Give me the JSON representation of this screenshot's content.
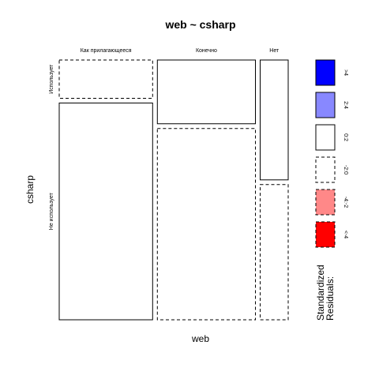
{
  "chart_data": {
    "type": "mosaic",
    "title": "web ~ csharp",
    "xlabel": "web",
    "ylabel": "csharp",
    "x_categories": [
      "Как прилагающееся",
      "Конечно",
      "Нет"
    ],
    "x_proportions": [
      0.4,
      0.42,
      0.12
    ],
    "y_categories": [
      "Использует",
      "Не использует"
    ],
    "cells": [
      {
        "web": "Как прилагающееся",
        "csharp": "Использует",
        "share": 0.15,
        "residual_bin": "-2:0"
      },
      {
        "web": "Как прилагающееся",
        "csharp": "Не использует",
        "share": 0.85,
        "residual_bin": "0:2"
      },
      {
        "web": "Конечно",
        "csharp": "Использует",
        "share": 0.25,
        "residual_bin": "0:2"
      },
      {
        "web": "Конечно",
        "csharp": "Не использует",
        "share": 0.75,
        "residual_bin": "-2:0"
      },
      {
        "web": "Нет",
        "csharp": "Использует",
        "share": 0.47,
        "residual_bin": "0:2"
      },
      {
        "web": "Нет",
        "csharp": "Не использует",
        "share": 0.53,
        "residual_bin": "-2:0"
      }
    ],
    "legend": {
      "title_lines": [
        "Standardized",
        "Residuals:"
      ],
      "items": [
        {
          "label": ">4",
          "color": "#0000ff",
          "dashed": false
        },
        {
          "label": "2:4",
          "color": "#8888ff",
          "dashed": false
        },
        {
          "label": "0:2",
          "color": "#ffffff",
          "dashed": false
        },
        {
          "label": "-2:0",
          "color": "#ffffff",
          "dashed": true
        },
        {
          "label": "-4:-2",
          "color": "#ff8888",
          "dashed": true
        },
        {
          "label": "<-4",
          "color": "#ff0000",
          "dashed": true
        }
      ]
    }
  }
}
